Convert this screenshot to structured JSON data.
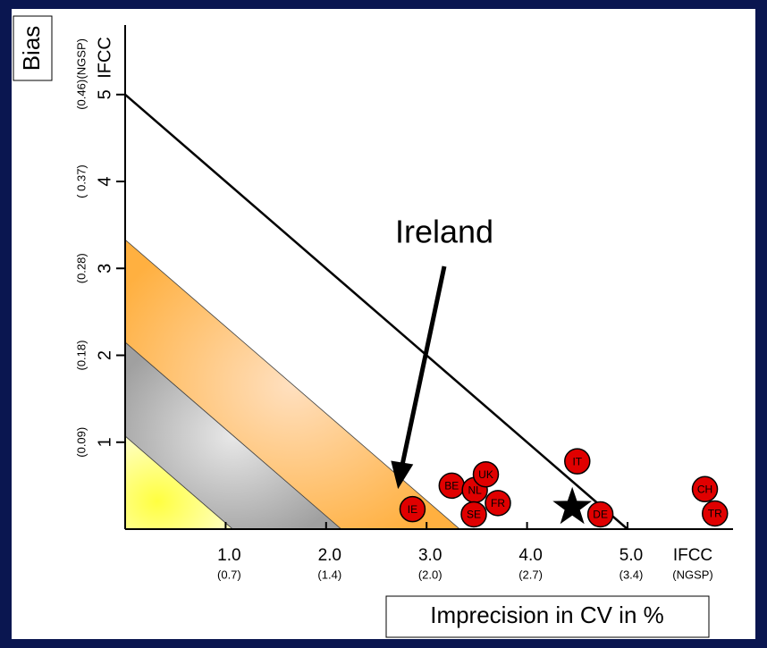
{
  "chart_data": {
    "type": "scatter",
    "ylabel": "Bias",
    "xlabel": "Imprecision in CV in %",
    "annotation": "Ireland",
    "labels": [
      "IE",
      "BE",
      "NL",
      "UK",
      "SE",
      "FR",
      "IT",
      "DE",
      "CH",
      "TR"
    ],
    "x": [
      2.86,
      3.25,
      3.48,
      3.59,
      3.47,
      3.71,
      4.5,
      4.73,
      5.77,
      5.87
    ],
    "values": [
      0.23,
      0.5,
      0.45,
      0.63,
      0.17,
      0.3,
      0.78,
      0.17,
      0.46,
      0.18
    ],
    "color": "#e00000",
    "star": [
      4.45,
      0.25
    ],
    "limit_line": 5,
    "bands": [
      {
        "color": "#ffb040",
        "from": 2.15,
        "to": 3.33
      },
      {
        "color": "#a0a0a0",
        "from": 1.07,
        "to": 2.15
      },
      {
        "color": "#ffff40",
        "from": 0,
        "to": 1.07
      }
    ],
    "xlim": [
      0,
      6.05
    ],
    "ylim": [
      0,
      5.8
    ],
    "xticks": [
      {
        "value": 1,
        "label": "1.0"
      },
      {
        "value": 2,
        "label": "2.0"
      },
      {
        "value": 3,
        "label": "3.0"
      },
      {
        "value": 4,
        "label": "4.0"
      },
      {
        "value": 5,
        "label": "5.0"
      }
    ],
    "xtick_sublabels": [
      "(0.7)",
      "(1.4)",
      "(2.0)",
      "(2.7)",
      "(3.4)"
    ],
    "x_unit": "IFCC",
    "x_unit_sub": "(NGSP)",
    "yticks": [
      1,
      2,
      3,
      4,
      5
    ],
    "ytick_sublabels": [
      "(0.09)",
      "(0.18)",
      "(0.28)",
      "( 0.37)",
      "(0.46)"
    ],
    "y_unit": "IFCC",
    "y_unit_sub": "(NGSP)"
  }
}
